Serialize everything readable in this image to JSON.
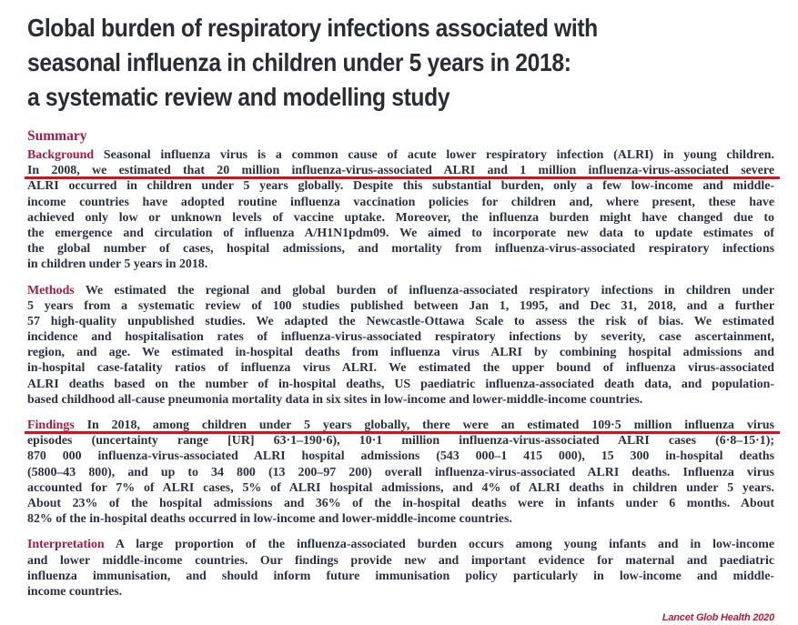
{
  "article": {
    "title_lines": [
      "Global burden of respiratory infections associated with",
      "seasonal influenza in children under 5 years in 2018:",
      "a systematic review and modelling study"
    ],
    "summary_heading": "Summary",
    "paragraphs": [
      {
        "id": "background",
        "label": "Background",
        "lines": [
          {
            "text": "Seasonal influenza virus is a common cause of acute lower respiratory infection (ALRI) in young children."
          },
          {
            "text": "In 2008, we estimated that 20 million influenza-virus-associated ALRI and 1 million influenza-virus-associated severe",
            "underline": true
          },
          {
            "text": "ALRI occurred in children under 5 years globally. Despite this substantial burden, only a few low-income and middle-"
          },
          {
            "text": "income countries have adopted routine influenza vaccination policies for children and, where present, these have"
          },
          {
            "text": "achieved only low or unknown levels of vaccine uptake. Moreover, the influenza burden might have changed due to"
          },
          {
            "text": "the emergence and circulation of influenza A/H1N1pdm09. We aimed to incorporate new data to update estimates of"
          },
          {
            "text": "the global number of cases, hospital admissions, and mortality from influenza-virus-associated respiratory infections"
          },
          {
            "text": "in children under 5 years in 2018."
          }
        ]
      },
      {
        "id": "methods",
        "label": "Methods",
        "lines": [
          {
            "text": "We estimated the regional and global burden of influenza-associated respiratory infections in children under"
          },
          {
            "text": "5 years from a systematic review of 100 studies published between Jan 1, 1995, and Dec 31, 2018, and a further"
          },
          {
            "text": "57 high-quality unpublished studies. We adapted the Newcastle-Ottawa Scale to assess the risk of bias. We estimated"
          },
          {
            "text": "incidence and hospitalisation rates of influenza-virus-associated respiratory infections by severity, case ascertainment,"
          },
          {
            "text": "region, and age. We estimated in-hospital deaths from influenza virus ALRI by combining hospital admissions and"
          },
          {
            "text": "in-hospital case-fatality ratios of influenza virus ALRI. We estimated the upper bound of influenza virus-associated"
          },
          {
            "text": "ALRI deaths based on the number of in-hospital deaths, US paediatric influenza-associated death data, and population-"
          },
          {
            "text": "based childhood all-cause pneumonia mortality data in six sites in low-income and lower-middle-income countries."
          }
        ]
      },
      {
        "id": "findings",
        "label": "Findings",
        "lines": [
          {
            "text": "In 2018, among children under 5 years globally, there were an estimated 109·5 million influenza virus",
            "underline": true
          },
          {
            "text": "episodes (uncertainty range [UR] 63·1–190·6), 10·1 million influenza-virus-associated ALRI cases (6·8–15·1);"
          },
          {
            "text": "870 000 influenza-virus-associated ALRI hospital admissions (543 000–1 415 000), 15 300 in-hospital deaths"
          },
          {
            "text": "(5800–43 800), and up to 34 800 (13 200–97 200) overall influenza-virus-associated ALRI deaths. Influenza virus"
          },
          {
            "text": "accounted for 7% of ALRI cases, 5% of ALRI hospital admissions, and 4% of ALRI deaths in children under 5 years."
          },
          {
            "text": "About 23% of the hospital admissions and 36% of the in-hospital deaths were in infants under 6 months. About"
          },
          {
            "text": "82% of the in-hospital deaths occurred in low-income and lower-middle-income countries."
          }
        ]
      },
      {
        "id": "interpretation",
        "label": "Interpretation",
        "lines": [
          {
            "text": "A large proportion of the influenza-associated burden occurs among young infants and in low-income"
          },
          {
            "text": "and lower middle-income countries. Our findings provide new and important evidence for maternal and paediatric"
          },
          {
            "text": "influenza immunisation, and should inform future immunisation policy particularly in low-income and middle-"
          },
          {
            "text": "income countries."
          }
        ]
      }
    ],
    "citation": "Lancet Glob Health 2020"
  },
  "colors": {
    "heading_red": "#a41c44",
    "underline_red": "#d41217",
    "body_text": "#293241",
    "title_text": "#292e34",
    "citation_red": "#b01e36"
  }
}
